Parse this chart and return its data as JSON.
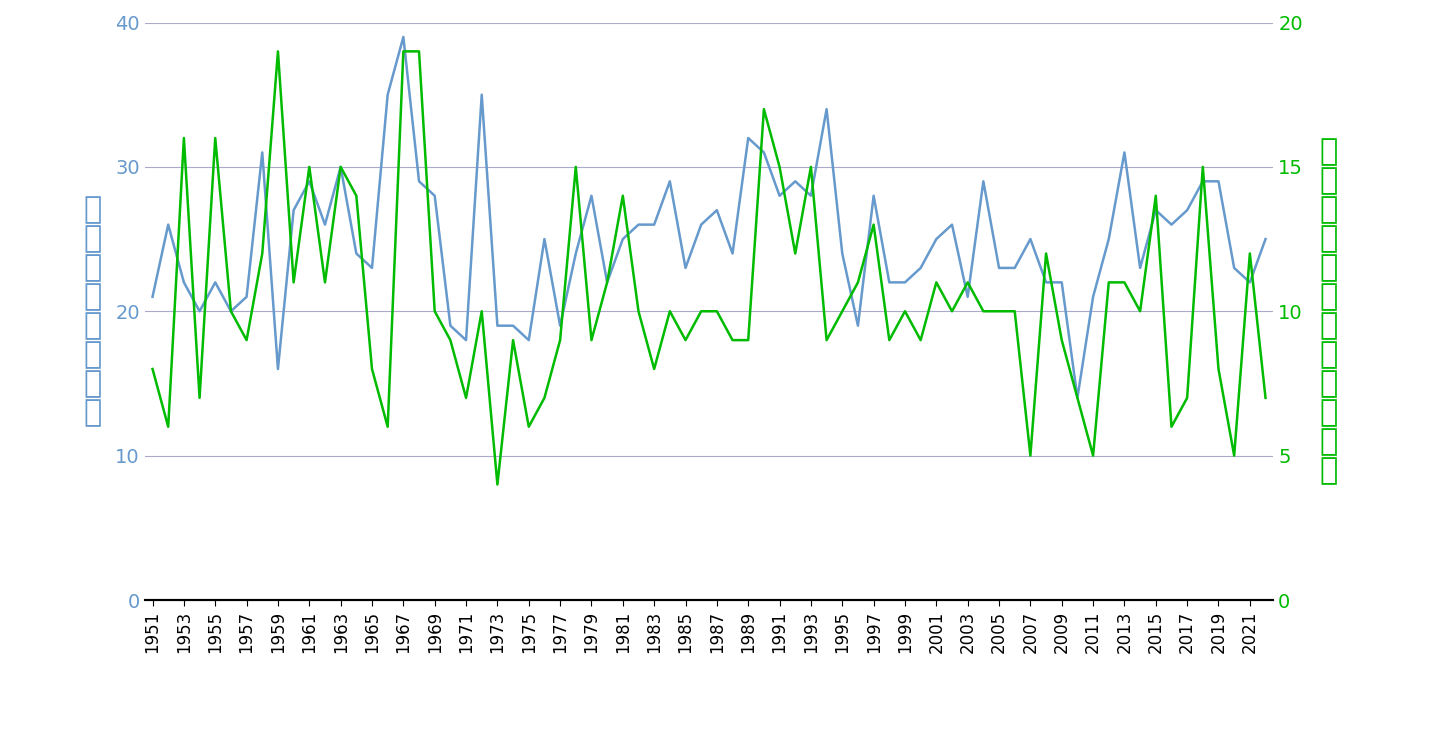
{
  "years": [
    1951,
    1952,
    1953,
    1954,
    1955,
    1956,
    1957,
    1958,
    1959,
    1960,
    1961,
    1962,
    1963,
    1964,
    1965,
    1966,
    1967,
    1968,
    1969,
    1970,
    1971,
    1972,
    1973,
    1974,
    1975,
    1976,
    1977,
    1978,
    1979,
    1980,
    1981,
    1982,
    1983,
    1984,
    1985,
    1986,
    1987,
    1988,
    1989,
    1990,
    1991,
    1992,
    1993,
    1994,
    1995,
    1996,
    1997,
    1998,
    1999,
    2000,
    2001,
    2002,
    2003,
    2004,
    2005,
    2006,
    2007,
    2008,
    2009,
    2010,
    2011,
    2012,
    2013,
    2014,
    2015,
    2016,
    2017,
    2018,
    2019,
    2020,
    2021,
    2022
  ],
  "typhoon_count": [
    21,
    26,
    22,
    20,
    22,
    20,
    21,
    31,
    16,
    27,
    29,
    26,
    30,
    24,
    23,
    35,
    39,
    29,
    28,
    19,
    18,
    35,
    19,
    19,
    18,
    25,
    19,
    24,
    28,
    22,
    25,
    26,
    26,
    29,
    23,
    26,
    27,
    24,
    32,
    31,
    28,
    29,
    28,
    34,
    24,
    19,
    28,
    22,
    22,
    23,
    25,
    26,
    21,
    29,
    23,
    23,
    25,
    22,
    22,
    14,
    21,
    25,
    31,
    23,
    27,
    26,
    27,
    29,
    29,
    23,
    22,
    25
  ],
  "approach_count": [
    8,
    6,
    16,
    7,
    16,
    10,
    9,
    12,
    19,
    11,
    15,
    11,
    15,
    14,
    8,
    6,
    19,
    19,
    10,
    9,
    7,
    10,
    4,
    9,
    6,
    7,
    9,
    15,
    9,
    11,
    14,
    10,
    8,
    10,
    9,
    10,
    10,
    9,
    9,
    17,
    15,
    12,
    15,
    9,
    10,
    11,
    13,
    9,
    10,
    9,
    11,
    10,
    11,
    10,
    10,
    10,
    5,
    12,
    9,
    7,
    5,
    11,
    11,
    10,
    14,
    6,
    7,
    15,
    8,
    5,
    12,
    7
  ],
  "left_ylabel": "台風の年間発生数",
  "right_ylabel": "台風の日本への年間接近数",
  "blue_color": "#6699cc",
  "green_color": "#00bb00",
  "left_ylim": [
    0,
    40
  ],
  "right_ylim": [
    0,
    20
  ],
  "left_yticks": [
    0,
    10,
    20,
    30,
    40
  ],
  "right_yticks": [
    0,
    5,
    10,
    15,
    20
  ],
  "grid_color": "#aaaacc",
  "bg_color": "#ffffff",
  "tick_label_fontsize": 14,
  "ylabel_fontsize": 22
}
